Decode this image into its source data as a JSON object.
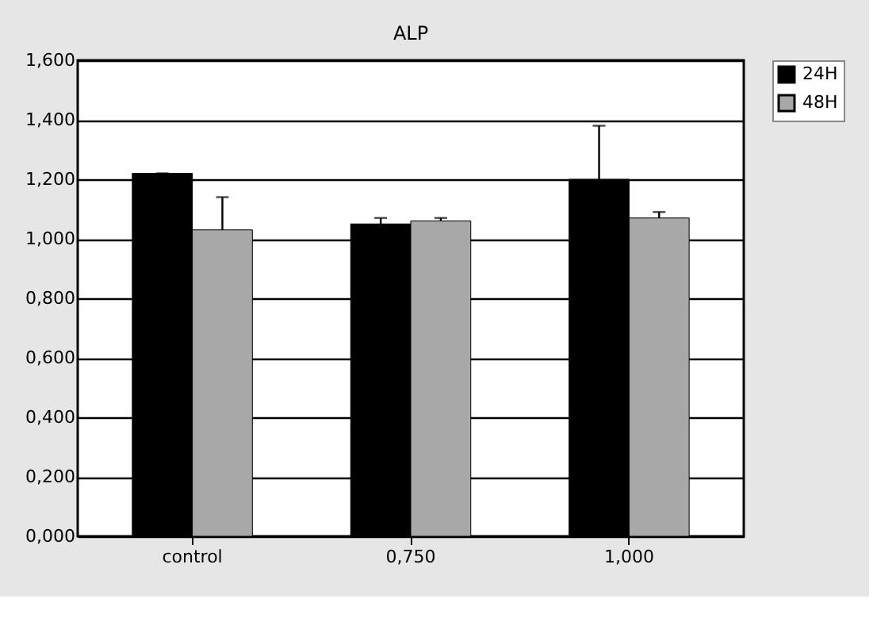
{
  "chart_data": {
    "type": "bar",
    "title": "ALP",
    "categories": [
      "control",
      "0,750",
      "1,000"
    ],
    "series": [
      {
        "name": "24H",
        "color": "#000000",
        "values": [
          1.22,
          1.05,
          1.2
        ],
        "errors": [
          [
            1.22,
            1.22
          ],
          [
            1.05,
            1.07
          ],
          [
            1.2,
            1.38
          ]
        ]
      },
      {
        "name": "48H",
        "color": "#a8a8a8",
        "values": [
          1.03,
          1.06,
          1.07
        ],
        "errors": [
          [
            1.03,
            1.14
          ],
          [
            1.06,
            1.07
          ],
          [
            1.07,
            1.09
          ]
        ]
      }
    ],
    "ylim": [
      0,
      1.6
    ],
    "yticks": [
      {
        "value": 0,
        "label": "0,000"
      },
      {
        "value": 0.2,
        "label": "0,200"
      },
      {
        "value": 0.4,
        "label": "0,400"
      },
      {
        "value": 0.6,
        "label": "0,600"
      },
      {
        "value": 0.8,
        "label": "0,800"
      },
      {
        "value": 1.0,
        "label": "1,000"
      },
      {
        "value": 1.2,
        "label": "1,200"
      },
      {
        "value": 1.4,
        "label": "1,400"
      },
      {
        "value": 1.6,
        "label": "1,600"
      }
    ],
    "grid": "y",
    "legend": "right"
  }
}
